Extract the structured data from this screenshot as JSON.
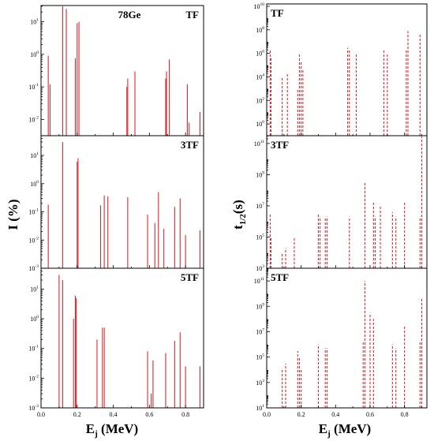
{
  "chart_data": [
    {
      "type": "bar",
      "description_none": "",
      "xlabel_main": "E",
      "xlabel_sub": "j",
      "xlabel_unit": " (MeV)",
      "ylabel": "I (%)",
      "scale": "log",
      "panels": [
        {
          "label": "TF",
          "extra_label": "78Ge",
          "ylim_exp": [
            -2.5,
            1.5
          ],
          "yticks_exp": [
            -2,
            -1,
            0,
            1
          ],
          "bars": [
            {
              "x": 0.04,
              "y": 0.9
            },
            {
              "x": 0.05,
              "y": 0.12
            },
            {
              "x": 0.12,
              "y": 50
            },
            {
              "x": 0.14,
              "y": 25
            },
            {
              "x": 0.19,
              "y": 0.75
            },
            {
              "x": 0.2,
              "y": 9
            },
            {
              "x": 0.21,
              "y": 10
            },
            {
              "x": 0.475,
              "y": 0.1
            },
            {
              "x": 0.48,
              "y": 0.18
            },
            {
              "x": 0.52,
              "y": 0.3
            },
            {
              "x": 0.69,
              "y": 0.18
            },
            {
              "x": 0.695,
              "y": 0.3
            },
            {
              "x": 0.71,
              "y": 0.7
            },
            {
              "x": 0.81,
              "y": 0.12
            },
            {
              "x": 0.82,
              "y": 0.008
            },
            {
              "x": 0.88,
              "y": 0.017
            }
          ]
        },
        {
          "label": "3TF",
          "ylim_exp": [
            -3,
            1.7
          ],
          "yticks_exp": [
            -3,
            -2,
            -1,
            0,
            1
          ],
          "bars": [
            {
              "x": 0.04,
              "y": 0.18
            },
            {
              "x": 0.12,
              "y": 30
            },
            {
              "x": 0.2,
              "y": 6
            },
            {
              "x": 0.205,
              "y": 8
            },
            {
              "x": 0.33,
              "y": 0.17
            },
            {
              "x": 0.35,
              "y": 0.38
            },
            {
              "x": 0.37,
              "y": 0.35
            },
            {
              "x": 0.48,
              "y": 0.33
            },
            {
              "x": 0.59,
              "y": 0.08
            },
            {
              "x": 0.63,
              "y": 0.04
            },
            {
              "x": 0.65,
              "y": 0.5
            },
            {
              "x": 0.68,
              "y": 0.025
            },
            {
              "x": 0.74,
              "y": 0.15
            },
            {
              "x": 0.77,
              "y": 0.3
            },
            {
              "x": 0.8,
              "y": 0.015
            },
            {
              "x": 0.88,
              "y": 0.022
            }
          ]
        },
        {
          "label": "5TF",
          "ylim_exp": [
            -3,
            1.7
          ],
          "yticks_exp": [
            -3,
            -2,
            -1,
            0,
            1
          ],
          "bars": [
            {
              "x": 0.1,
              "y": 30
            },
            {
              "x": 0.12,
              "y": 20
            },
            {
              "x": 0.18,
              "y": 1
            },
            {
              "x": 0.19,
              "y": 6
            },
            {
              "x": 0.195,
              "y": 5
            },
            {
              "x": 0.31,
              "y": 0.2
            },
            {
              "x": 0.34,
              "y": 0.5
            },
            {
              "x": 0.35,
              "y": 0.5
            },
            {
              "x": 0.59,
              "y": 0.08
            },
            {
              "x": 0.61,
              "y": 0.003
            },
            {
              "x": 0.62,
              "y": 0.04
            },
            {
              "x": 0.69,
              "y": 0.07
            },
            {
              "x": 0.74,
              "y": 0.18
            },
            {
              "x": 0.77,
              "y": 0.35
            },
            {
              "x": 0.8,
              "y": 0.025
            },
            {
              "x": 0.88,
              "y": 0.025
            }
          ]
        }
      ],
      "xlim": [
        0,
        0.9
      ],
      "xticks": [
        "0.0",
        "0.2",
        "0.4",
        "0.6",
        "0.8"
      ],
      "color": "#e0282e"
    },
    {
      "type": "bar",
      "xlabel_main": "E",
      "xlabel_sub": "j",
      "xlabel_unit": " (MeV)",
      "ylabel_main": "t",
      "ylabel_sub": "1/2",
      "ylabel_unit": "(s)",
      "scale": "log",
      "line_style": "dashed",
      "panels": [
        {
          "label": "TF",
          "ylim_exp": [
            -1,
            10.2
          ],
          "yticks_exp": [
            0,
            2,
            4,
            6,
            8,
            10
          ],
          "bars": [
            {
              "x": 0.02,
              "y": 2000000.0
            },
            {
              "x": 0.025,
              "y": 500000.0
            },
            {
              "x": 0.09,
              "y": 10000.0
            },
            {
              "x": 0.12,
              "y": 20000.0
            },
            {
              "x": 0.18,
              "y": 1000.0
            },
            {
              "x": 0.19,
              "y": 800000.0
            },
            {
              "x": 0.2,
              "y": 200000.0
            },
            {
              "x": 0.21,
              "y": 50000.0
            },
            {
              "x": 0.47,
              "y": 3000000.0
            },
            {
              "x": 0.48,
              "y": 2000000.0
            },
            {
              "x": 0.52,
              "y": 1000000.0
            },
            {
              "x": 0.68,
              "y": 2000000.0
            },
            {
              "x": 0.7,
              "y": 800000.0
            },
            {
              "x": 0.81,
              "y": 2000000.0
            },
            {
              "x": 0.82,
              "y": 80000000.0
            },
            {
              "x": 0.89,
              "y": 50000000.0
            }
          ]
        },
        {
          "label": "3TF",
          "ylim_exp": [
            3,
            11.5
          ],
          "yticks_exp": [
            3,
            5,
            7,
            9,
            11
          ],
          "bars": [
            {
              "x": 0.02,
              "y": 3000000.0
            },
            {
              "x": 0.025,
              "y": 100000.0
            },
            {
              "x": 0.09,
              "y": 10000.0
            },
            {
              "x": 0.11,
              "y": 20000.0
            },
            {
              "x": 0.16,
              "y": 100000.0
            },
            {
              "x": 0.3,
              "y": 3000000.0
            },
            {
              "x": 0.31,
              "y": 2000000.0
            },
            {
              "x": 0.34,
              "y": 2000000.0
            },
            {
              "x": 0.35,
              "y": 2000000.0
            },
            {
              "x": 0.48,
              "y": 2000000.0
            },
            {
              "x": 0.57,
              "y": 300000000.0
            },
            {
              "x": 0.62,
              "y": 20000000.0
            },
            {
              "x": 0.63,
              "y": 2000000.0
            },
            {
              "x": 0.66,
              "y": 10000000.0
            },
            {
              "x": 0.73,
              "y": 4000000.0
            },
            {
              "x": 0.75,
              "y": 2000000.0
            },
            {
              "x": 0.8,
              "y": 20000000.0
            },
            {
              "x": 0.89,
              "y": 2000000.0
            },
            {
              "x": 0.9,
              "y": 300000000000.0
            }
          ]
        },
        {
          "label": "5TF",
          "ylim_exp": [
            1,
            12
          ],
          "yticks_exp": [
            1,
            3,
            5,
            7,
            9,
            11
          ],
          "bars": [
            {
              "x": 0.09,
              "y": 10000.0
            },
            {
              "x": 0.11,
              "y": 30000.0
            },
            {
              "x": 0.18,
              "y": 300000.0
            },
            {
              "x": 0.19,
              "y": 100000.0
            },
            {
              "x": 0.2,
              "y": 10000.0
            },
            {
              "x": 0.3,
              "y": 1000000.0
            },
            {
              "x": 0.34,
              "y": 500000.0
            },
            {
              "x": 0.35,
              "y": 500000.0
            },
            {
              "x": 0.56,
              "y": 2000000.0
            },
            {
              "x": 0.57,
              "y": 100000000000.0
            },
            {
              "x": 0.6,
              "y": 300000000.0
            },
            {
              "x": 0.62,
              "y": 100000000.0
            },
            {
              "x": 0.73,
              "y": 1000000.0
            },
            {
              "x": 0.75,
              "y": 500000.0
            },
            {
              "x": 0.8,
              "y": 30000000.0
            },
            {
              "x": 0.89,
              "y": 2000000.0
            },
            {
              "x": 0.9,
              "y": 5000000000.0
            }
          ]
        }
      ],
      "xlim": [
        0,
        0.93
      ],
      "xticks": [
        "0.0",
        "0.2",
        "0.4",
        "0.6",
        "0.8"
      ],
      "color": "#e0282e"
    }
  ]
}
